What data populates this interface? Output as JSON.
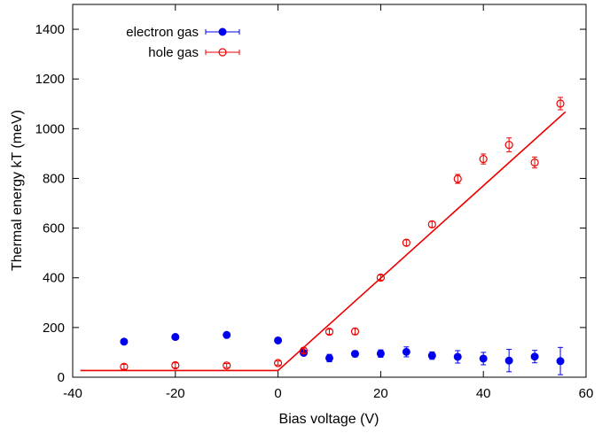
{
  "chart_data": {
    "type": "scatter",
    "title": "",
    "xlabel": "Bias voltage (V)",
    "ylabel": "Thermal energy kT (meV)",
    "xlim": [
      -40,
      60
    ],
    "ylim": [
      0,
      1500
    ],
    "x_ticks": [
      "-40",
      "-20",
      "0",
      "20",
      "40",
      "60"
    ],
    "y_ticks": [
      "0",
      "200",
      "400",
      "600",
      "800",
      "1000",
      "1200",
      "1400"
    ],
    "x_tick_values": [
      -40,
      -20,
      0,
      20,
      40,
      60
    ],
    "y_tick_values": [
      0,
      200,
      400,
      600,
      800,
      1000,
      1200,
      1400
    ],
    "grid": false,
    "legend_position": "top-left",
    "series": [
      {
        "name": "electron gas",
        "marker": "filled-circle",
        "color": "#0000ee",
        "points": [
          {
            "x": -30,
            "y": 143,
            "err": 0
          },
          {
            "x": -20,
            "y": 162,
            "err": 0
          },
          {
            "x": -10,
            "y": 170,
            "err": 0
          },
          {
            "x": 0,
            "y": 148,
            "err": 0
          },
          {
            "x": 5,
            "y": 98,
            "err": 8
          },
          {
            "x": 10,
            "y": 77,
            "err": 15
          },
          {
            "x": 15,
            "y": 94,
            "err": 12
          },
          {
            "x": 20,
            "y": 95,
            "err": 15
          },
          {
            "x": 25,
            "y": 102,
            "err": 20
          },
          {
            "x": 30,
            "y": 87,
            "err": 15
          },
          {
            "x": 35,
            "y": 82,
            "err": 25
          },
          {
            "x": 40,
            "y": 75,
            "err": 25
          },
          {
            "x": 45,
            "y": 67,
            "err": 45
          },
          {
            "x": 50,
            "y": 83,
            "err": 25
          },
          {
            "x": 55,
            "y": 65,
            "err": 55
          }
        ]
      },
      {
        "name": "hole gas",
        "marker": "open-circle",
        "color": "#ee0000",
        "points": [
          {
            "x": -30,
            "y": 42,
            "err": 10
          },
          {
            "x": -20,
            "y": 48,
            "err": 10
          },
          {
            "x": -10,
            "y": 47,
            "err": 8
          },
          {
            "x": 0,
            "y": 57,
            "err": 8
          },
          {
            "x": 5,
            "y": 107,
            "err": 10
          },
          {
            "x": 10,
            "y": 183,
            "err": 10
          },
          {
            "x": 15,
            "y": 184,
            "err": 12
          },
          {
            "x": 20,
            "y": 401,
            "err": 10
          },
          {
            "x": 25,
            "y": 541,
            "err": 12
          },
          {
            "x": 30,
            "y": 615,
            "err": 12
          },
          {
            "x": 35,
            "y": 798,
            "err": 18
          },
          {
            "x": 40,
            "y": 878,
            "err": 20
          },
          {
            "x": 45,
            "y": 935,
            "err": 28
          },
          {
            "x": 50,
            "y": 864,
            "err": 22
          },
          {
            "x": 55,
            "y": 1101,
            "err": 25
          }
        ]
      }
    ],
    "fit_line": {
      "color": "#ee0000",
      "points": [
        {
          "x": -38.5,
          "y": 27
        },
        {
          "x": 0,
          "y": 27
        },
        {
          "x": 56,
          "y": 1068
        }
      ]
    }
  }
}
